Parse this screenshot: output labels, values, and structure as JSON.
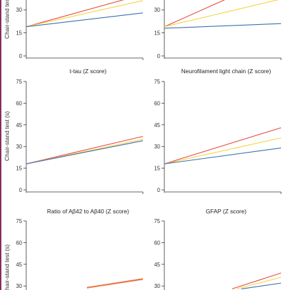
{
  "colors": {
    "red": "#e8473e",
    "yellow": "#f5d440",
    "blue": "#3a6fae",
    "orange": "#f08a3c",
    "axis": "#333333",
    "border": "#8a2a5e"
  },
  "chart_data": [
    {
      "type": "line",
      "title": "",
      "ylabel": "Chair-stand test (s)",
      "ylim": [
        0,
        75
      ],
      "yticks": [
        0,
        15,
        30
      ],
      "xlim": [
        0,
        1
      ],
      "series": [
        {
          "color": "red",
          "x": [
            0,
            1
          ],
          "y": [
            19,
            40
          ]
        },
        {
          "color": "yellow",
          "x": [
            0,
            1
          ],
          "y": [
            19,
            36
          ]
        },
        {
          "color": "blue",
          "x": [
            0,
            1
          ],
          "y": [
            19,
            28
          ]
        }
      ]
    },
    {
      "type": "line",
      "title": "",
      "ylabel": "",
      "ylim": [
        0,
        75
      ],
      "yticks": [
        0,
        15,
        30
      ],
      "xlim": [
        0,
        1
      ],
      "series": [
        {
          "color": "red",
          "x": [
            0,
            0.62
          ],
          "y": [
            19,
            40
          ]
        },
        {
          "color": "yellow",
          "x": [
            0,
            1
          ],
          "y": [
            19,
            37
          ]
        },
        {
          "color": "blue",
          "x": [
            0,
            1
          ],
          "y": [
            18,
            21
          ]
        }
      ]
    },
    {
      "type": "line",
      "title": "t-tau (Z score)",
      "ylabel": "Chair-stand test (s)",
      "ylim": [
        0,
        75
      ],
      "yticks": [
        0,
        15,
        30,
        45,
        60,
        75
      ],
      "xlim": [
        0,
        1
      ],
      "series": [
        {
          "color": "red",
          "x": [
            0,
            1
          ],
          "y": [
            18,
            37
          ]
        },
        {
          "color": "yellow",
          "x": [
            0,
            1
          ],
          "y": [
            18,
            35
          ]
        },
        {
          "color": "blue",
          "x": [
            0,
            1
          ],
          "y": [
            18,
            34
          ]
        }
      ]
    },
    {
      "type": "line",
      "title": "Neurofilament light chain (Z score)",
      "ylabel": "",
      "ylim": [
        0,
        75
      ],
      "yticks": [
        0,
        15,
        30,
        45,
        60,
        75
      ],
      "xlim": [
        0,
        1
      ],
      "series": [
        {
          "color": "red",
          "x": [
            0,
            1
          ],
          "y": [
            18,
            43
          ]
        },
        {
          "color": "yellow",
          "x": [
            0,
            1
          ],
          "y": [
            18,
            36
          ]
        },
        {
          "color": "blue",
          "x": [
            0,
            1
          ],
          "y": [
            18,
            29
          ]
        }
      ]
    },
    {
      "type": "line",
      "title": "Ratio of Aβ42 to Aβ40 (Z score)",
      "ylabel": "Chair-stand test (s)",
      "ylim": [
        0,
        75
      ],
      "yticks": [
        30,
        45,
        60,
        75
      ],
      "xlim": [
        0,
        1
      ],
      "series": [
        {
          "color": "red",
          "x": [
            0.52,
            1
          ],
          "y": [
            29,
            35
          ]
        },
        {
          "color": "orange",
          "x": [
            0.52,
            1
          ],
          "y": [
            28.5,
            34.5
          ]
        }
      ]
    },
    {
      "type": "line",
      "title": "GFAP (Z score)",
      "ylabel": "",
      "ylim": [
        0,
        75
      ],
      "yticks": [
        30,
        45,
        60,
        75
      ],
      "xlim": [
        0,
        1
      ],
      "series": [
        {
          "color": "red",
          "x": [
            0.58,
            1
          ],
          "y": [
            28,
            39
          ]
        },
        {
          "color": "yellow",
          "x": [
            0.62,
            1
          ],
          "y": [
            28,
            36
          ]
        },
        {
          "color": "blue",
          "x": [
            0.66,
            1
          ],
          "y": [
            28,
            32
          ]
        }
      ]
    }
  ]
}
